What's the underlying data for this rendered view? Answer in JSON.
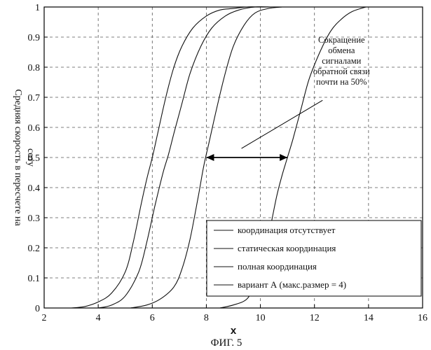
{
  "chart_data": {
    "type": "line",
    "title": "",
    "xlabel": "x",
    "ylabel": "Средняя скорость в пересчете на соту",
    "ylabel_lines": [
      "Средняя скорость в пересчете на",
      "соту"
    ],
    "xlim": [
      2,
      16
    ],
    "ylim": [
      0,
      1
    ],
    "x_ticks": [
      2,
      4,
      6,
      8,
      10,
      12,
      14,
      16
    ],
    "y_ticks": [
      0,
      0.1,
      0.2,
      0.3,
      0.4,
      0.5,
      0.6,
      0.7,
      0.8,
      0.9,
      1
    ],
    "y_tick_labels": [
      "0",
      "0.1",
      "0.2",
      "0.3",
      "0.4",
      "0.5",
      "0.6",
      "0.7",
      "0.8",
      "0.9",
      "1"
    ],
    "x_tick_labels": [
      "2",
      "4",
      "6",
      "8",
      "10",
      "12",
      "14",
      "16"
    ],
    "grid": true,
    "legend_position": "bottom-right",
    "series": [
      {
        "name": "координация отсутствует",
        "x": [
          3.0,
          3.5,
          4.0,
          4.5,
          5.0,
          5.3,
          5.6,
          5.8,
          6.0,
          6.2,
          6.5,
          6.8,
          7.1,
          7.5,
          8.0,
          8.5,
          9.0,
          9.5,
          10.0
        ],
        "y": [
          0.0,
          0.005,
          0.02,
          0.05,
          0.12,
          0.22,
          0.35,
          0.43,
          0.5,
          0.58,
          0.7,
          0.8,
          0.87,
          0.93,
          0.97,
          0.99,
          0.995,
          1.0,
          1.0
        ]
      },
      {
        "name": "статическая координация",
        "x": [
          4.0,
          4.5,
          5.0,
          5.5,
          5.8,
          6.1,
          6.4,
          6.6,
          6.8,
          7.1,
          7.4,
          7.8,
          8.2,
          8.7,
          9.2,
          9.8,
          10.4
        ],
        "y": [
          0.0,
          0.01,
          0.04,
          0.12,
          0.22,
          0.34,
          0.45,
          0.51,
          0.58,
          0.68,
          0.78,
          0.87,
          0.93,
          0.97,
          0.99,
          1.0,
          1.0
        ]
      },
      {
        "name": "полная координация",
        "x": [
          5.2,
          5.8,
          6.3,
          6.8,
          7.1,
          7.4,
          7.7,
          7.9,
          8.1,
          8.4,
          8.7,
          9.0,
          9.4,
          9.8,
          10.3,
          10.8
        ],
        "y": [
          0.0,
          0.01,
          0.03,
          0.07,
          0.13,
          0.23,
          0.37,
          0.47,
          0.55,
          0.67,
          0.78,
          0.87,
          0.94,
          0.98,
          0.995,
          1.0
        ]
      },
      {
        "name": "вариант А (макс.размер = 4)",
        "x": [
          8.5,
          9.0,
          9.5,
          9.8,
          10.0,
          10.3,
          10.6,
          10.8,
          11.0,
          11.2,
          11.5,
          11.8,
          12.2,
          12.6,
          13.0,
          13.4,
          13.9
        ],
        "y": [
          0.0,
          0.01,
          0.03,
          0.08,
          0.14,
          0.24,
          0.37,
          0.44,
          0.5,
          0.56,
          0.66,
          0.76,
          0.85,
          0.92,
          0.96,
          0.985,
          1.0
        ]
      }
    ],
    "annotations": [
      {
        "text_lines": [
          "Сокращение",
          "обмена",
          "сигналами",
          "обратной связи",
          "почти на 50%"
        ],
        "arrow_from_x": 8.0,
        "arrow_to_x": 11.0,
        "arrow_y": 0.5,
        "pointer_start": [
          12.3,
          0.69
        ],
        "pointer_end": [
          9.3,
          0.53
        ]
      }
    ]
  },
  "caption": "ФИГ. 5"
}
